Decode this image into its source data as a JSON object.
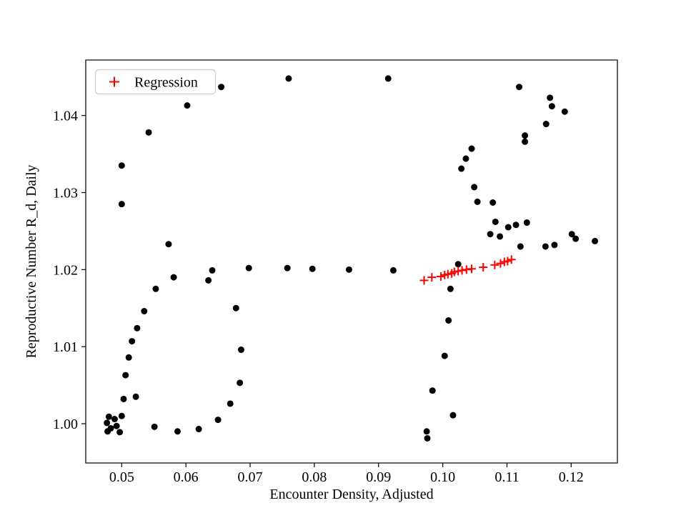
{
  "figure": {
    "background": "#ffffff"
  },
  "chart_data": {
    "type": "scatter",
    "title": "",
    "xlabel": "Encounter Density, Adjusted",
    "ylabel": "Reproductive Number R_d, Daily",
    "xlim": [
      0.0444,
      0.1272
    ],
    "ylim": [
      0.9949,
      1.0472
    ],
    "x_ticks": [
      0.05,
      0.06,
      0.07,
      0.08,
      0.09,
      0.1,
      0.11,
      0.12
    ],
    "y_ticks": [
      1.0,
      1.01,
      1.02,
      1.03,
      1.04
    ],
    "x_tick_labels": [
      "0.05",
      "0.06",
      "0.07",
      "0.08",
      "0.09",
      "0.10",
      "0.11",
      "0.12"
    ],
    "y_tick_labels": [
      "1.00",
      "1.01",
      "1.02",
      "1.03",
      "1.04"
    ],
    "grid": false,
    "legend": {
      "position": "upper-left",
      "entries": [
        {
          "label": "Regression",
          "marker": "plus",
          "color": "#ff0000"
        }
      ]
    },
    "colors": {
      "observations": "#000000",
      "regression": "#ff0000",
      "spine": "#000000",
      "legend_border": "#cccccc"
    },
    "series": [
      {
        "name": "observations",
        "marker": "circle",
        "color": "#000000",
        "points": [
          [
            0.048,
            1.0009
          ],
          [
            0.0477,
            1.0001
          ],
          [
            0.0483,
            0.9994
          ],
          [
            0.0478,
            0.999
          ],
          [
            0.0489,
            1.0006
          ],
          [
            0.0492,
            0.9997
          ],
          [
            0.0497,
            0.9989
          ],
          [
            0.05,
            1.001
          ],
          [
            0.0503,
            1.0032
          ],
          [
            0.05,
            1.0285
          ],
          [
            0.05,
            1.0335
          ],
          [
            0.0542,
            1.0378
          ],
          [
            0.0602,
            1.0413
          ],
          [
            0.0655,
            1.0437
          ],
          [
            0.076,
            1.0448
          ],
          [
            0.0915,
            1.0448
          ],
          [
            0.0522,
            1.0035
          ],
          [
            0.0506,
            1.0063
          ],
          [
            0.0511,
            1.0086
          ],
          [
            0.0516,
            1.0107
          ],
          [
            0.0524,
            1.0124
          ],
          [
            0.0535,
            1.0146
          ],
          [
            0.0553,
            1.0175
          ],
          [
            0.0581,
            1.019
          ],
          [
            0.0573,
            1.0233
          ],
          [
            0.0635,
            1.0186
          ],
          [
            0.0641,
            1.0199
          ],
          [
            0.0678,
            1.015
          ],
          [
            0.0686,
            1.0096
          ],
          [
            0.0684,
            1.0053
          ],
          [
            0.0669,
            1.0026
          ],
          [
            0.065,
            1.0005
          ],
          [
            0.062,
            0.9993
          ],
          [
            0.0587,
            0.999
          ],
          [
            0.0551,
            0.9996
          ],
          [
            0.0698,
            1.0202
          ],
          [
            0.0758,
            1.0202
          ],
          [
            0.0797,
            1.0201
          ],
          [
            0.0854,
            1.02
          ],
          [
            0.0923,
            1.0199
          ],
          [
            0.0975,
            0.999
          ],
          [
            0.0976,
            0.9981
          ],
          [
            0.0984,
            1.0043
          ],
          [
            0.1003,
            1.0088
          ],
          [
            0.1016,
            1.0011
          ],
          [
            0.1009,
            1.0134
          ],
          [
            0.1012,
            1.0175
          ],
          [
            0.1024,
            1.0207
          ],
          [
            0.1029,
            1.0331
          ],
          [
            0.1036,
            1.0344
          ],
          [
            0.1045,
            1.0357
          ],
          [
            0.1049,
            1.0307
          ],
          [
            0.1054,
            1.0288
          ],
          [
            0.1078,
            1.0287
          ],
          [
            0.1082,
            1.0262
          ],
          [
            0.1074,
            1.0246
          ],
          [
            0.1089,
            1.0243
          ],
          [
            0.1102,
            1.0255
          ],
          [
            0.1114,
            1.0258
          ],
          [
            0.1121,
            1.023
          ],
          [
            0.1131,
            1.0261
          ],
          [
            0.1128,
            1.0374
          ],
          [
            0.1128,
            1.0366
          ],
          [
            0.1119,
            1.0437
          ],
          [
            0.1161,
            1.0389
          ],
          [
            0.1167,
            1.0423
          ],
          [
            0.117,
            1.0412
          ],
          [
            0.116,
            1.023
          ],
          [
            0.1174,
            1.0232
          ],
          [
            0.119,
            1.0405
          ],
          [
            0.1201,
            1.0246
          ],
          [
            0.1207,
            1.024
          ],
          [
            0.1237,
            1.0237
          ]
        ]
      },
      {
        "name": "Regression",
        "marker": "plus",
        "color": "#ff0000",
        "points": [
          [
            0.0971,
            1.0186
          ],
          [
            0.0983,
            1.019
          ],
          [
            0.0997,
            1.0191
          ],
          [
            0.1003,
            1.0193
          ],
          [
            0.1008,
            1.0194
          ],
          [
            0.1014,
            1.0195
          ],
          [
            0.1018,
            1.0197
          ],
          [
            0.1024,
            1.0198
          ],
          [
            0.103,
            1.0199
          ],
          [
            0.1037,
            1.02
          ],
          [
            0.1045,
            1.0201
          ],
          [
            0.1063,
            1.0203
          ],
          [
            0.1081,
            1.0206
          ],
          [
            0.109,
            1.0208
          ],
          [
            0.1096,
            1.021
          ],
          [
            0.1101,
            1.0211
          ],
          [
            0.1107,
            1.0213
          ]
        ]
      }
    ]
  }
}
